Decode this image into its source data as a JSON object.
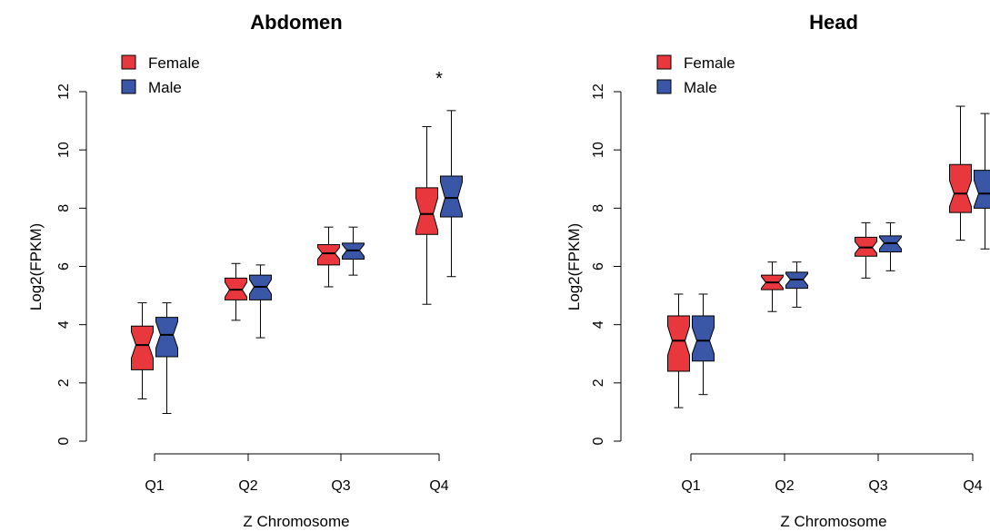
{
  "chart_data": [
    {
      "type": "boxplot",
      "title": "Abdomen",
      "xlabel": "Z Chromosome",
      "ylabel": "Log2(FPKM)",
      "categories": [
        "Q1",
        "Q2",
        "Q3",
        "Q4"
      ],
      "ylim": [
        0,
        12
      ],
      "yticks": [
        0,
        2,
        4,
        6,
        8,
        10,
        12
      ],
      "notched": true,
      "legend_position": "top-left",
      "series": [
        {
          "name": "Female",
          "color": "#e8383d",
          "boxes": [
            {
              "min": 1.45,
              "q1": 2.45,
              "median": 3.3,
              "q3": 3.95,
              "max": 4.75,
              "notch": 0.45
            },
            {
              "min": 4.15,
              "q1": 4.85,
              "median": 5.2,
              "q3": 5.6,
              "max": 6.1,
              "notch": 0.25
            },
            {
              "min": 5.3,
              "q1": 6.05,
              "median": 6.45,
              "q3": 6.75,
              "max": 7.35,
              "notch": 0.2
            },
            {
              "min": 4.7,
              "q1": 7.1,
              "median": 7.8,
              "q3": 8.7,
              "max": 10.8,
              "notch": 0.55
            }
          ]
        },
        {
          "name": "Male",
          "color": "#3a57a7",
          "boxes": [
            {
              "min": 0.95,
              "q1": 2.9,
              "median": 3.65,
              "q3": 4.25,
              "max": 4.75,
              "notch": 0.45
            },
            {
              "min": 3.55,
              "q1": 4.85,
              "median": 5.3,
              "q3": 5.7,
              "max": 6.05,
              "notch": 0.25
            },
            {
              "min": 5.7,
              "q1": 6.25,
              "median": 6.55,
              "q3": 6.8,
              "max": 7.35,
              "notch": 0.2
            },
            {
              "min": 5.65,
              "q1": 7.7,
              "median": 8.35,
              "q3": 9.1,
              "max": 11.35,
              "notch": 0.55
            }
          ]
        }
      ],
      "annotations": [
        {
          "text": "*",
          "category": "Q4"
        }
      ]
    },
    {
      "type": "boxplot",
      "title": "Head",
      "xlabel": "Z Chromosome",
      "ylabel": "Log2(FPKM)",
      "categories": [
        "Q1",
        "Q2",
        "Q3",
        "Q4"
      ],
      "ylim": [
        0,
        12
      ],
      "yticks": [
        0,
        2,
        4,
        6,
        8,
        10,
        12
      ],
      "notched": true,
      "legend_position": "top-left",
      "series": [
        {
          "name": "Female",
          "color": "#e8383d",
          "boxes": [
            {
              "min": 1.15,
              "q1": 2.4,
              "median": 3.45,
              "q3": 4.3,
              "max": 5.05,
              "notch": 0.5
            },
            {
              "min": 4.45,
              "q1": 5.2,
              "median": 5.45,
              "q3": 5.7,
              "max": 6.15,
              "notch": 0.2
            },
            {
              "min": 5.6,
              "q1": 6.35,
              "median": 6.65,
              "q3": 7.0,
              "max": 7.5,
              "notch": 0.2
            },
            {
              "min": 6.9,
              "q1": 7.85,
              "median": 8.5,
              "q3": 9.5,
              "max": 11.5,
              "notch": 0.45
            }
          ]
        },
        {
          "name": "Male",
          "color": "#3a57a7",
          "boxes": [
            {
              "min": 1.6,
              "q1": 2.75,
              "median": 3.45,
              "q3": 4.3,
              "max": 5.05,
              "notch": 0.45
            },
            {
              "min": 4.6,
              "q1": 5.25,
              "median": 5.55,
              "q3": 5.8,
              "max": 6.15,
              "notch": 0.2
            },
            {
              "min": 5.85,
              "q1": 6.5,
              "median": 6.8,
              "q3": 7.05,
              "max": 7.5,
              "notch": 0.2
            },
            {
              "min": 6.6,
              "q1": 8.0,
              "median": 8.5,
              "q3": 9.3,
              "max": 11.25,
              "notch": 0.45
            }
          ]
        }
      ],
      "annotations": []
    }
  ]
}
